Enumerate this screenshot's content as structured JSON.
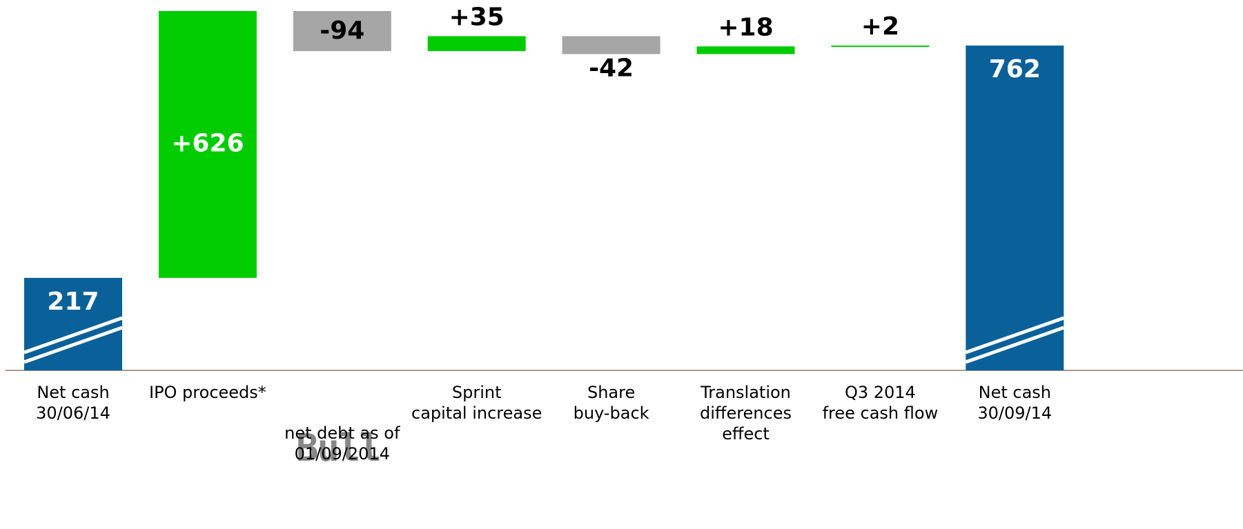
{
  "chart_data": {
    "type": "waterfall",
    "categories": [
      "Net cash\n30/06/14",
      "IPO proceeds*",
      "net debt as of\n01/09/2014",
      "Sprint\ncapital increase",
      "Share\nbuy-back",
      "Translation\ndifferences\neffect",
      "Q3 2014\nfree cash flow",
      "Net cash\n30/09/14"
    ],
    "values": [
      217,
      626,
      -94,
      35,
      -42,
      18,
      2,
      762
    ],
    "value_labels": [
      "217",
      "+626",
      "-94",
      "+35",
      "-42",
      "+18",
      "+2",
      "762"
    ],
    "colors": [
      "#0a6199",
      "#00cc00",
      "#a6a6a6",
      "#00cc00",
      "#a6a6a6",
      "#00cc00",
      "#00cc00",
      "#0a6199"
    ],
    "logo_text": "Bull"
  }
}
